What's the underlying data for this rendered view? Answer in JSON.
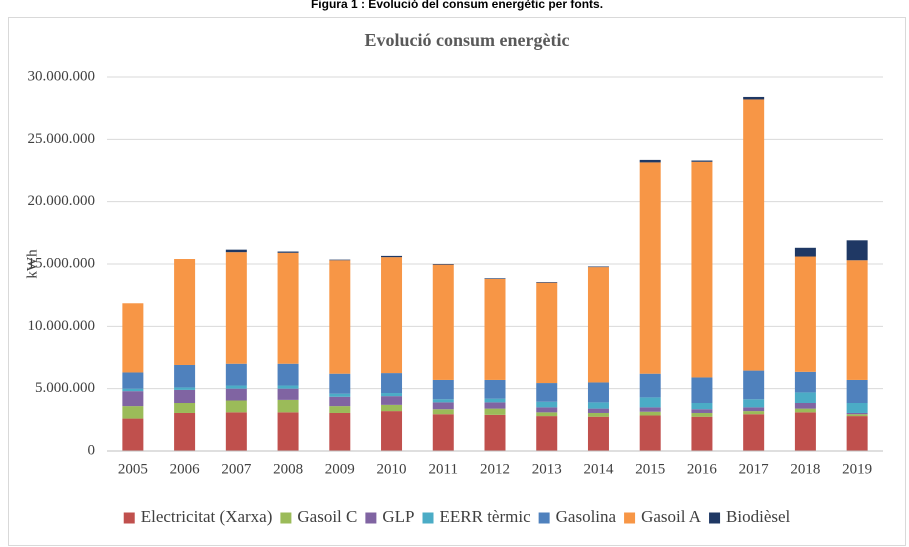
{
  "caption": "Figura 1 : Evolució del consum energètic per fonts.",
  "chart_data": {
    "type": "stacked_bar",
    "title": "Evolució consum energètic",
    "y_label": "kWh",
    "categories": [
      "2005",
      "2006",
      "2007",
      "2008",
      "2009",
      "2010",
      "2011",
      "2012",
      "2013",
      "2014",
      "2015",
      "2016",
      "2017",
      "2018",
      "2019"
    ],
    "series": [
      {
        "name": "Electricitat (Xarxa)",
        "color": "#c0504d",
        "values": [
          2600000,
          3050000,
          3100000,
          3100000,
          3050000,
          3200000,
          2950000,
          2900000,
          2800000,
          2750000,
          2850000,
          2750000,
          2950000,
          3100000,
          2800000
        ]
      },
      {
        "name": "Gasoil C",
        "color": "#9bbb59",
        "values": [
          1000000,
          800000,
          950000,
          1000000,
          550000,
          500000,
          400000,
          500000,
          300000,
          300000,
          300000,
          300000,
          250000,
          300000,
          150000
        ]
      },
      {
        "name": "GLP",
        "color": "#8064a2",
        "values": [
          1200000,
          1050000,
          950000,
          900000,
          750000,
          700000,
          550000,
          500000,
          400000,
          350000,
          350000,
          300000,
          300000,
          450000,
          100000
        ]
      },
      {
        "name": "EERR tèrmic",
        "color": "#4bacc6",
        "values": [
          200000,
          200000,
          250000,
          250000,
          250000,
          250000,
          250000,
          300000,
          450000,
          500000,
          800000,
          500000,
          650000,
          850000,
          800000
        ]
      },
      {
        "name": "Gasolina",
        "color": "#4f81bd",
        "values": [
          1300000,
          1800000,
          1750000,
          1750000,
          1600000,
          1600000,
          1550000,
          1500000,
          1500000,
          1600000,
          1900000,
          2050000,
          2300000,
          1650000,
          1850000
        ]
      },
      {
        "name": "Gasoil A",
        "color": "#f79646",
        "values": [
          5550000,
          8500000,
          8950000,
          8900000,
          9100000,
          9300000,
          9250000,
          8100000,
          8050000,
          9250000,
          16950000,
          17300000,
          21750000,
          9250000,
          9600000
        ]
      },
      {
        "name": "Biodièsel",
        "color": "#1f3864",
        "values": [
          0,
          0,
          200000,
          100000,
          50000,
          100000,
          50000,
          50000,
          50000,
          50000,
          200000,
          100000,
          200000,
          700000,
          1600000
        ]
      }
    ],
    "ylim": [
      0,
      30000000
    ],
    "yticks": [
      0,
      {
        "value": 5000000,
        "label": "5.000.000"
      },
      {
        "value": 10000000,
        "label": "10.000.000"
      },
      {
        "value": 15000000,
        "label": "15.000.000"
      },
      {
        "value": 20000000,
        "label": "20.000.000"
      },
      {
        "value": 25000000,
        "label": "25.000.000"
      },
      {
        "value": 30000000,
        "label": "30.000.000"
      }
    ],
    "grid": true,
    "legend": "bottom"
  }
}
